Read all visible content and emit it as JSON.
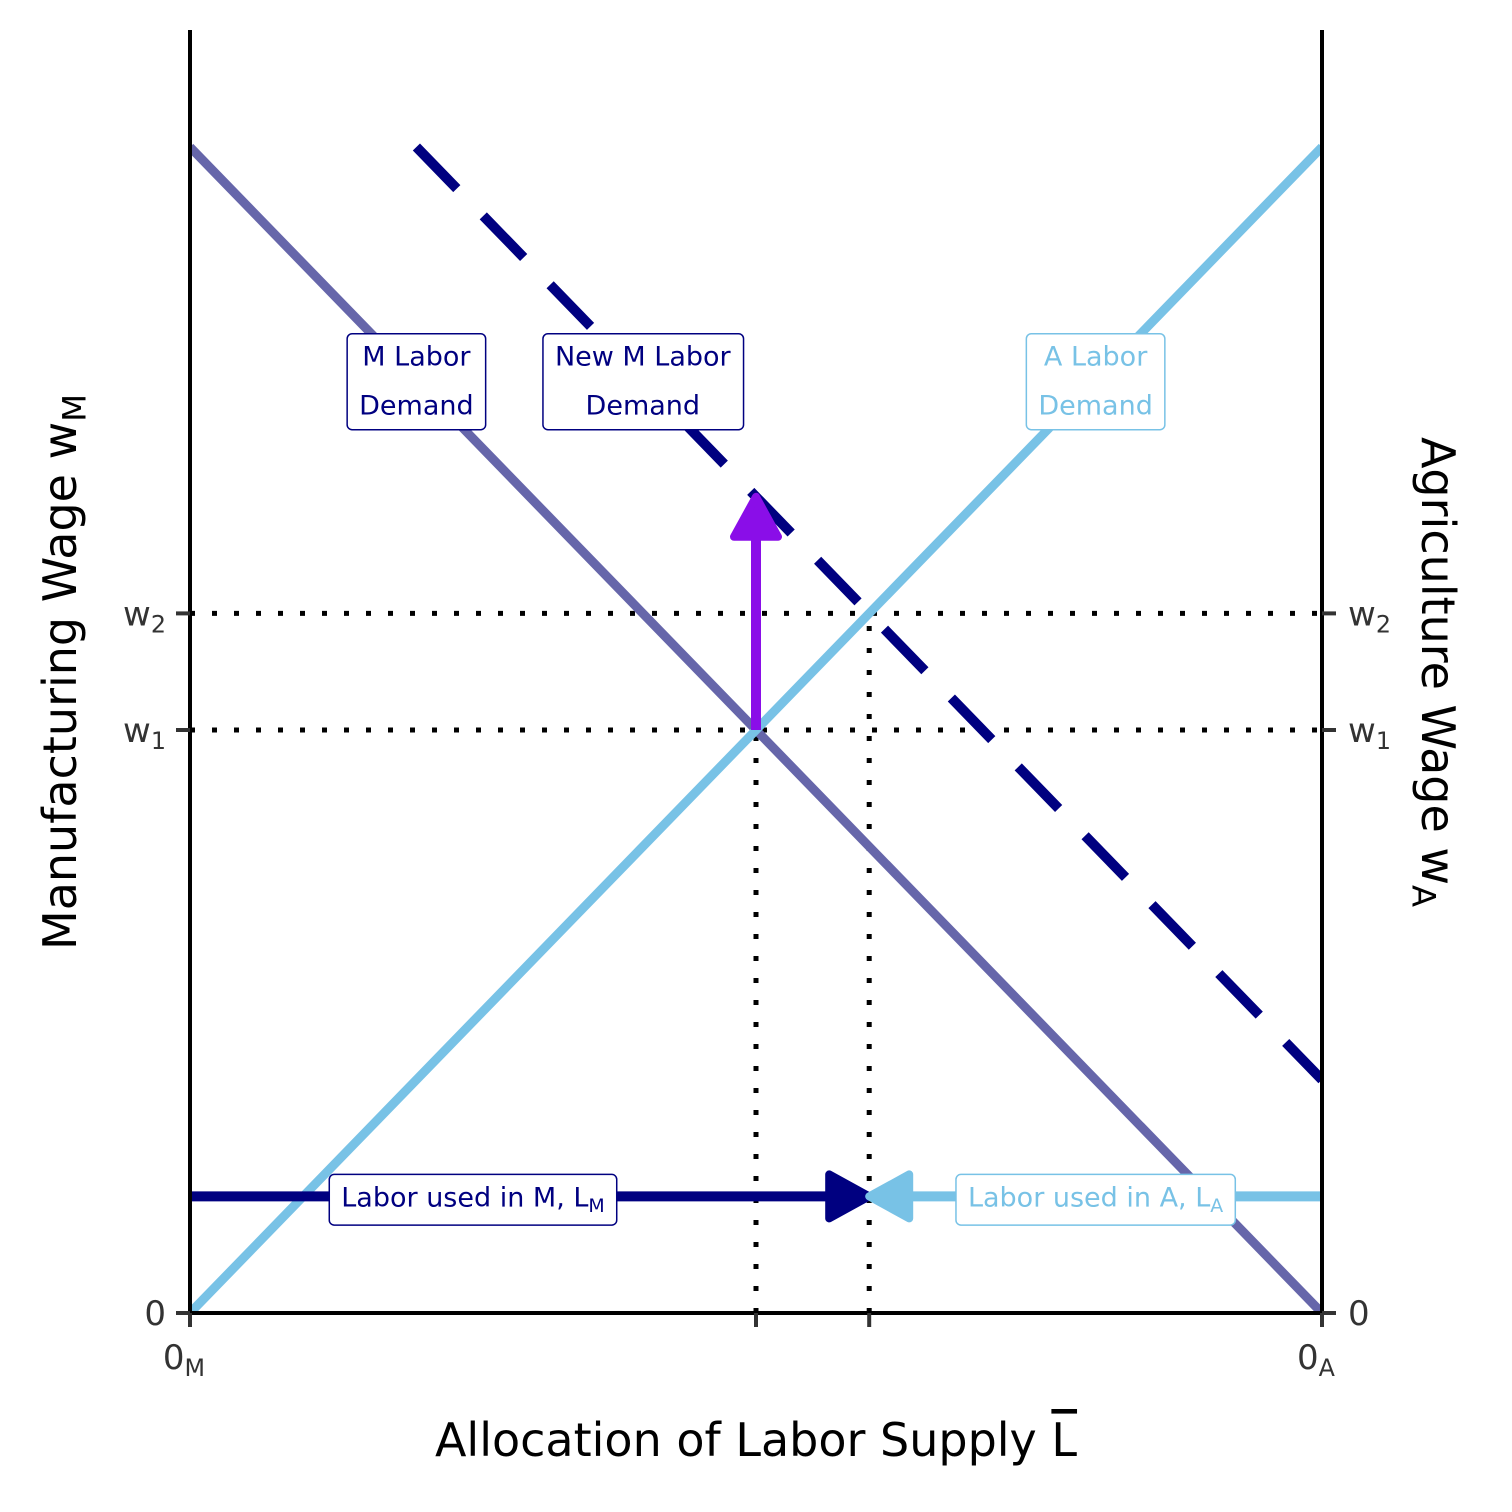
{
  "chart_data": {
    "type": "line",
    "xlabel": "Allocation of Labor Supply",
    "xlabel_bar": "L",
    "ylabel_left": "Manufacturing Wage w",
    "ylabel_left_sub": "M",
    "ylabel_right": "Agriculture Wage w",
    "ylabel_right_sub": "A",
    "xlim": [
      0,
      10
    ],
    "ylim": [
      0,
      10
    ],
    "grid": false,
    "x_ticks": [
      {
        "x": 0,
        "text": "0",
        "sub": "M"
      },
      {
        "x": 5,
        "text": "",
        "sub": ""
      },
      {
        "x": 6,
        "text": "",
        "sub": ""
      },
      {
        "x": 10,
        "text": "0",
        "sub": "A"
      }
    ],
    "y_ticks": [
      {
        "y": 0,
        "text": "0",
        "sub": ""
      },
      {
        "y": 5,
        "text": "w",
        "sub": "1"
      },
      {
        "y": 6,
        "text": "w",
        "sub": "2"
      }
    ],
    "series": [
      {
        "key": "m_demand",
        "x": [
          0,
          10
        ],
        "y": [
          10,
          0
        ],
        "color": "#6666aa",
        "dash": "solid"
      },
      {
        "key": "new_m_demand",
        "x": [
          2,
          10
        ],
        "y": [
          10,
          2
        ],
        "color": "#000080",
        "dash": "dashed"
      },
      {
        "key": "a_demand",
        "x": [
          0,
          10
        ],
        "y": [
          0,
          10
        ],
        "color": "#78c2e6",
        "dash": "solid"
      }
    ],
    "reference_lines": [
      {
        "from": [
          0,
          6
        ],
        "to": [
          10,
          6
        ]
      },
      {
        "from": [
          0,
          5
        ],
        "to": [
          10,
          5
        ]
      },
      {
        "from": [
          5,
          0
        ],
        "to": [
          5,
          5
        ]
      },
      {
        "from": [
          6,
          0
        ],
        "to": [
          6,
          6
        ]
      }
    ],
    "arrows": [
      {
        "key": "wage_shift",
        "from": [
          5,
          5
        ],
        "to": [
          5,
          7
        ],
        "color": "#8a0ee8"
      },
      {
        "key": "lm_arrow",
        "from": [
          0,
          1
        ],
        "to": [
          6,
          1
        ],
        "color": "#000080"
      },
      {
        "key": "la_arrow",
        "from": [
          10,
          1
        ],
        "to": [
          6,
          1
        ],
        "color": "#78c2e6"
      }
    ],
    "labels": [
      {
        "key": "m_demand_label",
        "lines": [
          "M Labor",
          "Demand"
        ],
        "x": 2,
        "y": 8,
        "color": "#000080",
        "sub": ""
      },
      {
        "key": "new_m_demand_label",
        "lines": [
          "New M Labor",
          "Demand"
        ],
        "x": 4,
        "y": 8,
        "color": "#000080",
        "sub": ""
      },
      {
        "key": "a_demand_label",
        "lines": [
          "A Labor",
          "Demand"
        ],
        "x": 8,
        "y": 8,
        "color": "#78c2e6",
        "sub": ""
      },
      {
        "key": "lm_label",
        "lines": [
          "Labor used in M, L"
        ],
        "x": 2.5,
        "y": 1,
        "color": "#000080",
        "sub": "M"
      },
      {
        "key": "la_label",
        "lines": [
          "Labor used in A, L"
        ],
        "x": 8,
        "y": 1,
        "color": "#78c2e6",
        "sub": "A"
      }
    ]
  }
}
